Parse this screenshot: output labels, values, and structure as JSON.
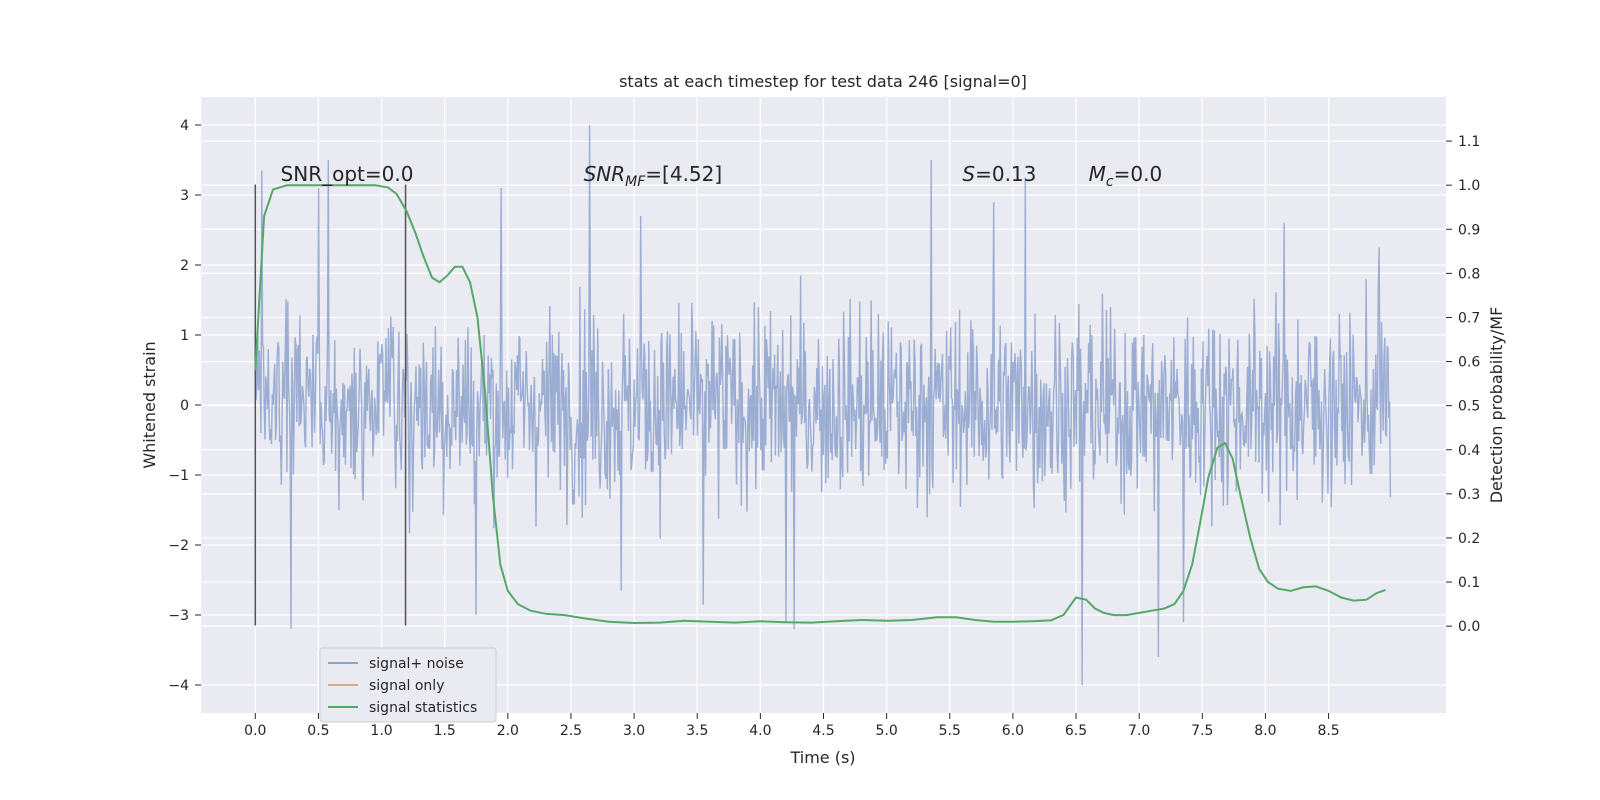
{
  "chart_data": {
    "type": "line",
    "title": "stats at each timestep for test data 246 [signal=0]",
    "xlabel": "Time (s)",
    "ylabel": "Whitened strain",
    "y2label": "Detection probability/MF",
    "xlim": [
      -0.43,
      9.43
    ],
    "ylim": [
      -4.4,
      4.4
    ],
    "y2lim": [
      -0.197,
      1.2
    ],
    "xticks": [
      "0.0",
      "0.5",
      "1.0",
      "1.5",
      "2.0",
      "2.5",
      "3.0",
      "3.5",
      "4.0",
      "4.5",
      "5.0",
      "5.5",
      "6.0",
      "6.5",
      "7.0",
      "7.5",
      "8.0",
      "8.5"
    ],
    "yticks": [
      "4",
      "3",
      "2",
      "1",
      "0",
      "−1",
      "−2",
      "−3",
      "−4"
    ],
    "y2ticks": [
      "1.1",
      "1.0",
      "0.9",
      "0.8",
      "0.7",
      "0.6",
      "0.5",
      "0.4",
      "0.3",
      "0.2",
      "0.1",
      "0.0"
    ],
    "grid": true,
    "legend_position": "lower-left",
    "annotations": [
      {
        "id": "snr-opt",
        "text": "SNR_opt=0.0",
        "x": 0.2,
        "y": 3.2
      },
      {
        "id": "snr-mf",
        "text": "SNR",
        "sub": "MF",
        "rest": "=[4.52]",
        "x": 2.6,
        "y": 3.2
      },
      {
        "id": "s-stat",
        "text": "S",
        "rest": "=0.13",
        "x": 5.6,
        "y": 3.2
      },
      {
        "id": "mc",
        "text": "M",
        "sub": "c",
        "rest": "=0.0",
        "x": 6.6,
        "y": 3.2
      }
    ],
    "vlines": [
      {
        "x": 0.0,
        "ymin": -3.15,
        "ymax": 3.15
      },
      {
        "x": 1.19,
        "ymin": -3.15,
        "ymax": 3.15
      }
    ],
    "series": [
      {
        "name": "signal+ noise",
        "color": "#8da2cd",
        "kind": "noise",
        "t_start": 0.0,
        "t_end": 8.99,
        "samples": 1400,
        "peaks": [
          {
            "t": 0.05,
            "v": 3.35
          },
          {
            "t": 0.28,
            "v": -3.2
          },
          {
            "t": 0.5,
            "v": 3.1
          },
          {
            "t": 0.58,
            "v": 3.5
          },
          {
            "t": 1.95,
            "v": 3.1
          },
          {
            "t": 1.75,
            "v": -3.0
          },
          {
            "t": 2.65,
            "v": 4.0
          },
          {
            "t": 2.9,
            "v": -2.65
          },
          {
            "t": 3.55,
            "v": -2.85
          },
          {
            "t": 4.2,
            "v": -3.1
          },
          {
            "t": 4.27,
            "v": -3.2
          },
          {
            "t": 5.35,
            "v": 3.5
          },
          {
            "t": 6.1,
            "v": 3.25
          },
          {
            "t": 6.55,
            "v": -4.0
          },
          {
            "t": 7.15,
            "v": -3.6
          },
          {
            "t": 7.35,
            "v": -3.1
          },
          {
            "t": 8.9,
            "v": 2.25
          },
          {
            "t": 5.85,
            "v": 2.9
          },
          {
            "t": 3.05,
            "v": 2.7
          },
          {
            "t": 8.15,
            "v": 2.6
          }
        ]
      },
      {
        "name": "signal only",
        "color": "#e1a688",
        "kind": "line",
        "points": []
      },
      {
        "name": "signal statistics",
        "color": "#55a868",
        "kind": "line",
        "axis": "right",
        "points": [
          [
            0.0,
            0.58
          ],
          [
            0.07,
            0.93
          ],
          [
            0.14,
            0.99
          ],
          [
            0.25,
            1.0
          ],
          [
            0.5,
            1.0
          ],
          [
            0.75,
            1.0
          ],
          [
            0.95,
            1.0
          ],
          [
            1.05,
            0.995
          ],
          [
            1.12,
            0.98
          ],
          [
            1.2,
            0.94
          ],
          [
            1.27,
            0.89
          ],
          [
            1.33,
            0.84
          ],
          [
            1.4,
            0.79
          ],
          [
            1.46,
            0.78
          ],
          [
            1.52,
            0.795
          ],
          [
            1.58,
            0.815
          ],
          [
            1.64,
            0.815
          ],
          [
            1.7,
            0.78
          ],
          [
            1.76,
            0.7
          ],
          [
            1.82,
            0.53
          ],
          [
            1.88,
            0.3
          ],
          [
            1.94,
            0.14
          ],
          [
            2.0,
            0.08
          ],
          [
            2.08,
            0.05
          ],
          [
            2.18,
            0.035
          ],
          [
            2.3,
            0.028
          ],
          [
            2.45,
            0.025
          ],
          [
            2.6,
            0.018
          ],
          [
            2.8,
            0.01
          ],
          [
            3.0,
            0.007
          ],
          [
            3.2,
            0.008
          ],
          [
            3.4,
            0.012
          ],
          [
            3.6,
            0.01
          ],
          [
            3.8,
            0.008
          ],
          [
            4.0,
            0.011
          ],
          [
            4.2,
            0.009
          ],
          [
            4.4,
            0.008
          ],
          [
            4.6,
            0.011
          ],
          [
            4.8,
            0.014
          ],
          [
            5.0,
            0.012
          ],
          [
            5.2,
            0.014
          ],
          [
            5.4,
            0.02
          ],
          [
            5.55,
            0.02
          ],
          [
            5.7,
            0.014
          ],
          [
            5.85,
            0.01
          ],
          [
            6.0,
            0.01
          ],
          [
            6.15,
            0.011
          ],
          [
            6.3,
            0.013
          ],
          [
            6.4,
            0.025
          ],
          [
            6.5,
            0.065
          ],
          [
            6.58,
            0.06
          ],
          [
            6.65,
            0.04
          ],
          [
            6.72,
            0.03
          ],
          [
            6.8,
            0.025
          ],
          [
            6.9,
            0.025
          ],
          [
            7.0,
            0.03
          ],
          [
            7.1,
            0.035
          ],
          [
            7.2,
            0.04
          ],
          [
            7.28,
            0.05
          ],
          [
            7.35,
            0.08
          ],
          [
            7.42,
            0.14
          ],
          [
            7.48,
            0.23
          ],
          [
            7.55,
            0.34
          ],
          [
            7.62,
            0.405
          ],
          [
            7.68,
            0.415
          ],
          [
            7.74,
            0.38
          ],
          [
            7.8,
            0.3
          ],
          [
            7.88,
            0.2
          ],
          [
            7.95,
            0.13
          ],
          [
            8.02,
            0.1
          ],
          [
            8.1,
            0.085
          ],
          [
            8.2,
            0.08
          ],
          [
            8.3,
            0.088
          ],
          [
            8.4,
            0.09
          ],
          [
            8.5,
            0.08
          ],
          [
            8.6,
            0.065
          ],
          [
            8.7,
            0.058
          ],
          [
            8.8,
            0.06
          ],
          [
            8.88,
            0.075
          ],
          [
            8.95,
            0.082
          ]
        ]
      }
    ]
  }
}
